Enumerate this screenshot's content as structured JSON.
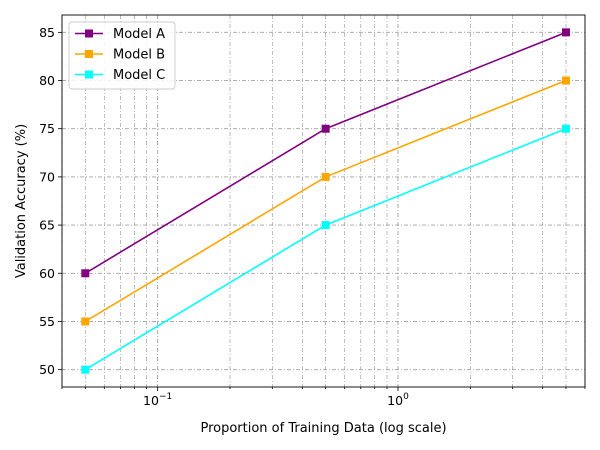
{
  "chart_data": {
    "type": "line",
    "title": "",
    "xlabel": "Proportion of Training Data (log scale)",
    "ylabel": "Validation Accuracy (%)",
    "xscale": "log",
    "xlim": [
      0.04,
      6.0
    ],
    "ylim": [
      48.2,
      86.8
    ],
    "x": [
      0.05,
      0.5,
      5.0
    ],
    "xticks": [
      {
        "value": 0.1,
        "label": "10",
        "exp": "−1"
      },
      {
        "value": 1,
        "label": "10",
        "exp": "0"
      }
    ],
    "yticks": [
      50,
      55,
      60,
      65,
      70,
      75,
      80,
      85
    ],
    "grid": true,
    "legend": "top-left",
    "series": [
      {
        "name": "Model A",
        "values": [
          60,
          75,
          85
        ],
        "color": "#800080",
        "marker": "square"
      },
      {
        "name": "Model B",
        "values": [
          55,
          70,
          80
        ],
        "color": "#ffa500",
        "marker": "square"
      },
      {
        "name": "Model C",
        "values": [
          50,
          65,
          75
        ],
        "color": "#00ffff",
        "marker": "square"
      }
    ]
  }
}
